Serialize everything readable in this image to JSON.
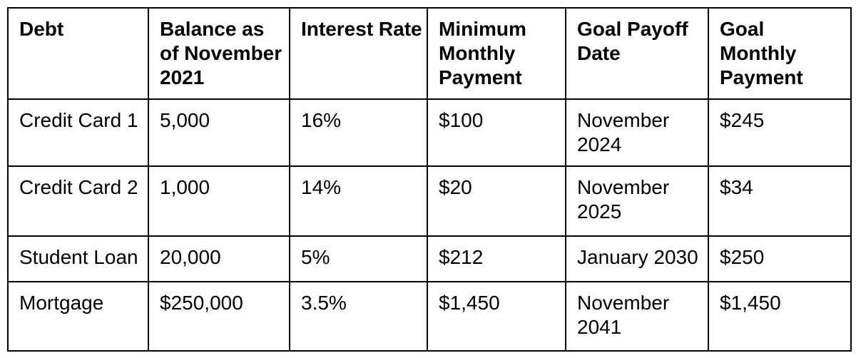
{
  "colors": {
    "border": "#000000",
    "text": "#000000",
    "background": "#ffffff"
  },
  "table": {
    "columns": [
      "Debt",
      "Balance as\nof November\n2021",
      "Interest Rate",
      "Minimum\nMonthly\nPayment",
      "Goal Payoff\nDate",
      "Goal\nMonthly\nPayment"
    ],
    "rows": [
      [
        "Credit Card 1",
        "5,000",
        "16%",
        "$100",
        "November\n2024",
        "$245"
      ],
      [
        "Credit Card 2",
        "1,000",
        "14%",
        "$20",
        "November\n2025",
        "$34"
      ],
      [
        "Student Loan",
        "20,000",
        "5%",
        "$212",
        "January 2030",
        "$250"
      ],
      [
        "Mortgage",
        "$250,000",
        "3.5%",
        "$1,450",
        "November\n2041",
        "$1,450"
      ]
    ]
  }
}
